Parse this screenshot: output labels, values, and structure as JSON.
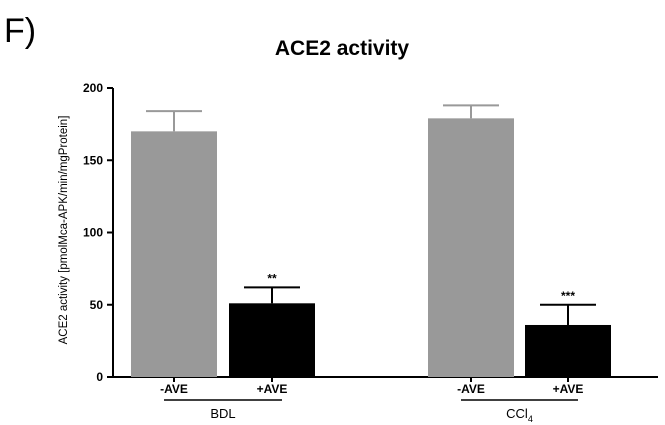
{
  "panel_label": "F)",
  "chart_data": {
    "type": "bar",
    "title": "ACE2 activity",
    "ylabel": "ACE2 activity [pmolMca-APK/min/mgProtein]",
    "ylim": [
      0,
      200
    ],
    "yticks": [
      0,
      50,
      100,
      150,
      200
    ],
    "categories": [
      "-AVE",
      "+AVE",
      "-AVE",
      "+AVE"
    ],
    "groups": [
      {
        "label": "BDL",
        "label_sub": "",
        "categories": [
          0,
          1
        ]
      },
      {
        "label": "CCl",
        "label_sub": "4",
        "categories": [
          2,
          3
        ]
      }
    ],
    "values": [
      170,
      51,
      179,
      36
    ],
    "errors": [
      14,
      11,
      9,
      14
    ],
    "significance": [
      "",
      "**",
      "",
      "***"
    ],
    "colors": [
      "#999999",
      "#000000",
      "#999999",
      "#000000"
    ],
    "grid": false,
    "legend": "none"
  }
}
